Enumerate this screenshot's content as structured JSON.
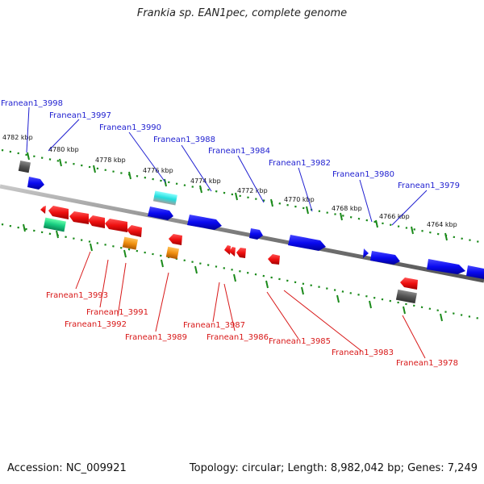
{
  "title": "Frankia sp. EAN1pec, complete genome",
  "footer": {
    "accession": "Accession: NC_009921",
    "stats": "Topology: circular; Length: 8,982,042 bp; Genes: 7,249"
  },
  "colors": {
    "forward_gene": "#1010ee",
    "reverse_gene": "#ee1010",
    "backbone": "#808080",
    "scale_dots": "#1a8a1a",
    "blue_label": "#1f1fd0",
    "red_label": "#d81818"
  },
  "scale_labels": [
    "4782 kbp",
    "4780 kbp",
    "4778 kbp",
    "4776 kbp",
    "4774 kbp",
    "4772 kbp",
    "4770 kbp",
    "4768 kbp",
    "4766 kbp",
    "4764 kbp"
  ],
  "forward_labels": [
    "Franean1_3998",
    "Franean1_3997",
    "Franean1_3990",
    "Franean1_3988",
    "Franean1_3984",
    "Franean1_3982",
    "Franean1_3980",
    "Franean1_3979"
  ],
  "reverse_labels": [
    "Franean1_3993",
    "Franean1_3991",
    "Franean1_3992",
    "Franean1_3989",
    "Franean1_3987",
    "Franean1_3986",
    "Franean1_3985",
    "Franean1_3983",
    "Franean1_3978"
  ]
}
